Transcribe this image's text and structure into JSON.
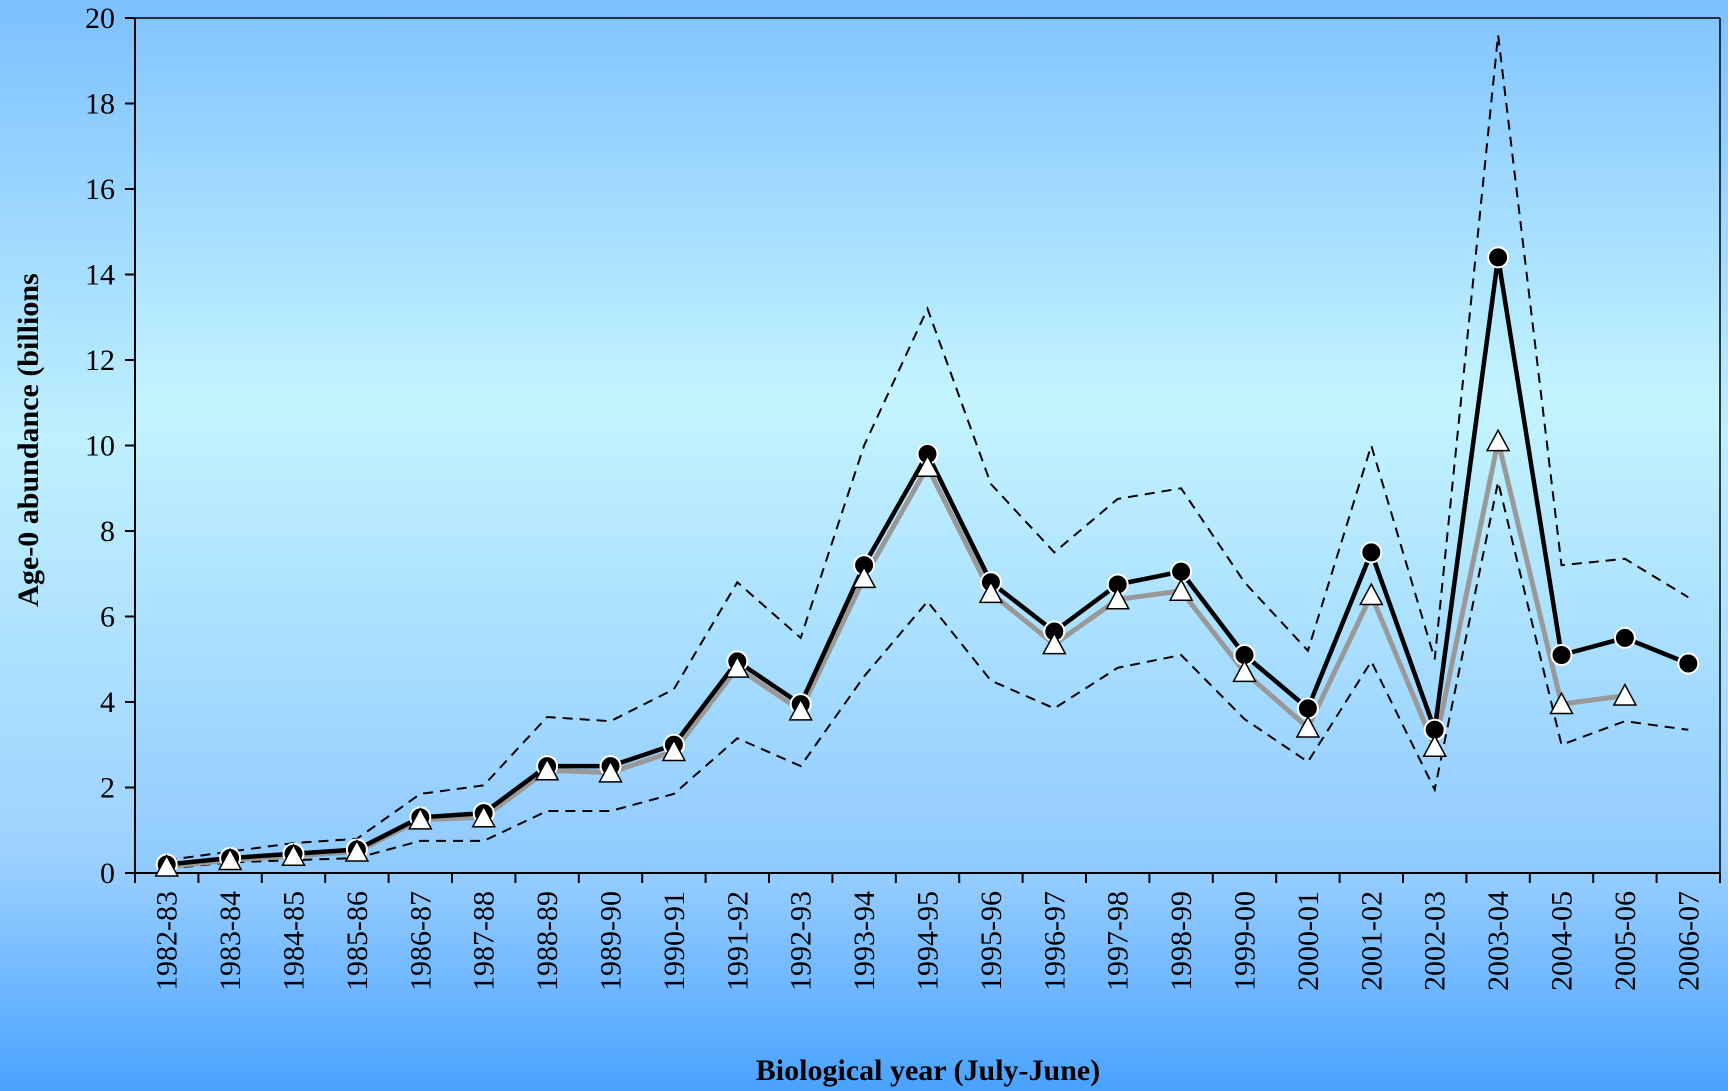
{
  "chart_data": {
    "type": "line",
    "title": "",
    "xlabel": "Biological year (July-June)",
    "ylabel": "Age-0 abundance (billions",
    "ylim": [
      0,
      20
    ],
    "yticks": [
      "0",
      "2",
      "4",
      "6",
      "8",
      "10",
      "12",
      "14",
      "16",
      "18",
      "20"
    ],
    "categories": [
      "1982-83",
      "1983-84",
      "1984-85",
      "1985-86",
      "1986-87",
      "1987-88",
      "1988-89",
      "1989-90",
      "1990-91",
      "1991-92",
      "1992-93",
      "1993-94",
      "1994-95",
      "1995-96",
      "1996-97",
      "1997-98",
      "1998-99",
      "1999-00",
      "2000-01",
      "2001-02",
      "2002-03",
      "2003-04",
      "2004-05",
      "2005-06",
      "2006-07"
    ],
    "grid": false,
    "legend": "none",
    "series": [
      {
        "style": "black line, filled circles",
        "color": "#000000",
        "values": [
          0.2,
          0.35,
          0.45,
          0.55,
          1.3,
          1.4,
          2.5,
          2.5,
          3.0,
          4.95,
          3.95,
          7.2,
          9.8,
          6.8,
          5.65,
          6.75,
          7.05,
          5.1,
          3.85,
          7.5,
          3.35,
          14.4,
          5.1,
          5.5,
          4.9
        ]
      },
      {
        "style": "gray line, open triangles",
        "color": "#999999",
        "values": [
          0.15,
          0.3,
          0.4,
          0.5,
          1.25,
          1.3,
          2.4,
          2.35,
          2.85,
          4.8,
          3.8,
          6.9,
          9.5,
          6.55,
          5.35,
          6.4,
          6.6,
          4.7,
          3.4,
          6.5,
          2.95,
          10.1,
          3.95,
          4.15,
          null
        ]
      },
      {
        "style": "dashed upper bound",
        "color": "#000000",
        "values": [
          0.3,
          0.5,
          0.7,
          0.8,
          1.85,
          2.05,
          3.65,
          3.55,
          4.3,
          6.8,
          5.5,
          10.0,
          13.2,
          9.1,
          7.5,
          8.75,
          9.0,
          6.8,
          5.2,
          10.0,
          5.0,
          19.6,
          7.2,
          7.35,
          6.45
        ]
      },
      {
        "style": "dashed lower bound",
        "color": "#000000",
        "values": [
          0.1,
          0.25,
          0.3,
          0.35,
          0.75,
          0.75,
          1.45,
          1.45,
          1.85,
          3.15,
          2.5,
          4.6,
          6.35,
          4.5,
          3.85,
          4.8,
          5.1,
          3.6,
          2.6,
          4.95,
          1.95,
          9.15,
          3.0,
          3.55,
          3.35
        ]
      }
    ]
  }
}
